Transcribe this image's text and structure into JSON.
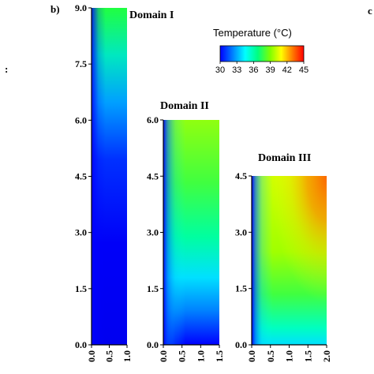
{
  "figure": {
    "panel_label": "b)",
    "edge_letter_right": "c",
    "edge_mark_left": ":"
  },
  "colorbar": {
    "title": "Temperature (°C)",
    "min": 30,
    "max": 45,
    "ticks": [
      "30",
      "33",
      "36",
      "39",
      "42",
      "45"
    ],
    "colormap": [
      "#0000ff",
      "#0080ff",
      "#00ffff",
      "#00ff80",
      "#80ff00",
      "#ffff00",
      "#ff8000",
      "#ff0000"
    ]
  },
  "chart_data": [
    {
      "type": "heatmap",
      "title": "Domain I",
      "x_ticks": [
        "0.0",
        "0.5",
        "1.0"
      ],
      "y_ticks": [
        "0.0",
        "1.5",
        "3.0",
        "4.5",
        "6.0",
        "7.5",
        "9.0"
      ],
      "xlim": [
        0,
        1.0
      ],
      "ylim": [
        0,
        9.0
      ],
      "temperature_range_c": [
        30,
        37
      ]
    },
    {
      "type": "heatmap",
      "title": "Domain II",
      "x_ticks": [
        "0.0",
        "0.5",
        "1.0",
        "1.5"
      ],
      "y_ticks": [
        "0.0",
        "1.5",
        "3.0",
        "4.5",
        "6.0"
      ],
      "xlim": [
        0,
        1.5
      ],
      "ylim": [
        0,
        6.0
      ],
      "temperature_range_c": [
        30,
        38
      ]
    },
    {
      "type": "heatmap",
      "title": "Domain III",
      "x_ticks": [
        "0.0",
        "0.5",
        "1.0",
        "1.5",
        "2.0"
      ],
      "y_ticks": [
        "0.0",
        "1.5",
        "3.0",
        "4.5"
      ],
      "xlim": [
        0,
        2.0
      ],
      "ylim": [
        0,
        4.5
      ],
      "temperature_range_c": [
        30,
        42
      ]
    }
  ]
}
